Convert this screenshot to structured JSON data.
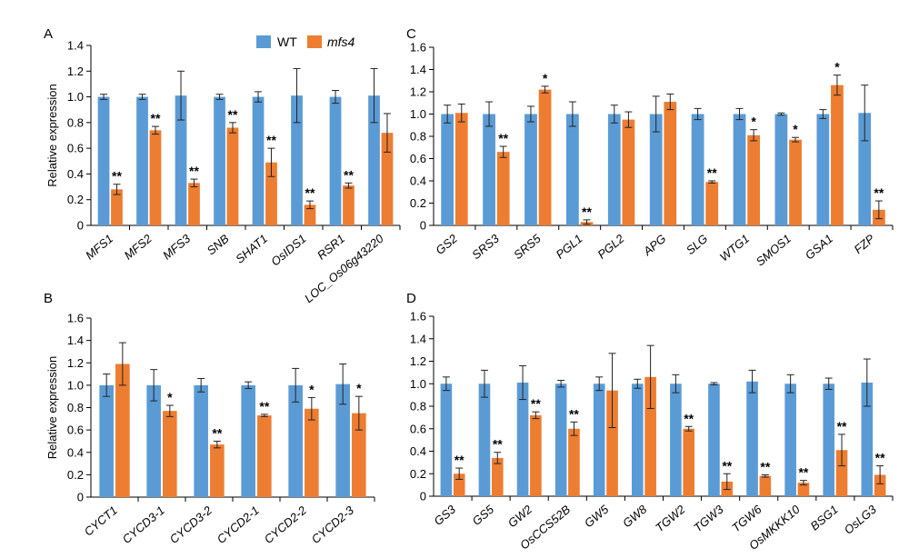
{
  "colors": {
    "wt": "#5b9bd5",
    "mutant": "#ed7d31",
    "axis": "#000000"
  },
  "legend": {
    "wt_label": "WT",
    "mutant_label": "mfs4"
  },
  "chart_data": [
    {
      "panel": "A",
      "type": "bar",
      "ylabel": "Relative expression",
      "ylim": [
        0,
        1.4
      ],
      "yticks": [
        "0",
        "0.2",
        "0.4",
        "0.6",
        "0.8",
        "1.0",
        "1.2",
        "1.4"
      ],
      "categories": [
        "MFS1",
        "MFS2",
        "MFS3",
        "SNB",
        "SHAT1",
        "OsIDS1",
        "RSR1",
        "LOC_Os06g43220"
      ],
      "series": [
        {
          "name": "WT",
          "values": [
            1.0,
            1.0,
            1.01,
            1.0,
            1.0,
            1.01,
            1.0,
            1.01
          ],
          "errors": [
            0.02,
            0.02,
            0.19,
            0.02,
            0.04,
            0.21,
            0.05,
            0.21
          ]
        },
        {
          "name": "mfs4",
          "values": [
            0.28,
            0.74,
            0.33,
            0.76,
            0.49,
            0.16,
            0.31,
            0.72
          ],
          "errors": [
            0.04,
            0.03,
            0.03,
            0.04,
            0.11,
            0.03,
            0.02,
            0.15
          ]
        }
      ],
      "annotations": [
        "**",
        "**",
        "**",
        "**",
        "**",
        "**",
        "**",
        ""
      ]
    },
    {
      "panel": "C",
      "type": "bar",
      "ylabel": "",
      "ylim": [
        0,
        1.6
      ],
      "yticks": [
        "0",
        "0.2",
        "0.4",
        "0.6",
        "0.8",
        "1.0",
        "1.2",
        "1.4",
        "1.6"
      ],
      "categories": [
        "GS2",
        "SRS3",
        "SRS5",
        "PGL1",
        "PGL2",
        "APG",
        "SLG",
        "WTG1",
        "SMOS1",
        "GSA1",
        "FZP"
      ],
      "series": [
        {
          "name": "WT",
          "values": [
            1.0,
            1.0,
            1.0,
            1.0,
            1.0,
            1.0,
            1.0,
            1.0,
            1.0,
            1.0,
            1.01
          ],
          "errors": [
            0.08,
            0.11,
            0.07,
            0.11,
            0.08,
            0.16,
            0.05,
            0.05,
            0.01,
            0.04,
            0.25
          ]
        },
        {
          "name": "mfs4",
          "values": [
            1.01,
            0.66,
            1.22,
            0.03,
            0.95,
            1.11,
            0.39,
            0.81,
            0.77,
            1.26,
            0.14
          ],
          "errors": [
            0.08,
            0.05,
            0.03,
            0.02,
            0.07,
            0.07,
            0.01,
            0.05,
            0.02,
            0.09,
            0.08
          ]
        }
      ],
      "annotations": [
        "",
        "**",
        "*",
        "**",
        "",
        "",
        "**",
        "*",
        "*",
        "*",
        "**"
      ]
    },
    {
      "panel": "B",
      "type": "bar",
      "ylabel": "Relative expression",
      "ylim": [
        0,
        1.6
      ],
      "yticks": [
        "0",
        "0.2",
        "0.4",
        "0.6",
        "0.8",
        "1.0",
        "1.2",
        "1.4",
        "1.6"
      ],
      "categories": [
        "CYCT1",
        "CYCD3-1",
        "CYCD3-2",
        "CYCD2-1",
        "CYCD2-2",
        "CYCD2-3"
      ],
      "series": [
        {
          "name": "WT",
          "values": [
            1.0,
            1.0,
            1.0,
            1.0,
            1.0,
            1.01
          ],
          "errors": [
            0.1,
            0.14,
            0.06,
            0.03,
            0.15,
            0.18
          ]
        },
        {
          "name": "mfs4",
          "values": [
            1.19,
            0.77,
            0.47,
            0.73,
            0.79,
            0.75
          ],
          "errors": [
            0.19,
            0.05,
            0.03,
            0.01,
            0.1,
            0.15
          ]
        }
      ],
      "annotations": [
        "",
        "*",
        "**",
        "**",
        "*",
        "*"
      ]
    },
    {
      "panel": "D",
      "type": "bar",
      "ylabel": "",
      "ylim": [
        0,
        1.6
      ],
      "yticks": [
        "0",
        "0.2",
        "0.4",
        "0.6",
        "0.8",
        "1.0",
        "1.2",
        "1.4",
        "1.6"
      ],
      "categories": [
        "GS3",
        "GS5",
        "GW2",
        "OsCCS52B",
        "GW5",
        "GW8",
        "TGW2",
        "TGW3",
        "TGW6",
        "OsMKKK10",
        "BSG1",
        "OsLG3"
      ],
      "series": [
        {
          "name": "WT",
          "values": [
            1.0,
            1.0,
            1.01,
            1.0,
            1.0,
            1.0,
            1.0,
            1.0,
            1.02,
            1.0,
            1.0,
            1.01
          ],
          "errors": [
            0.06,
            0.12,
            0.15,
            0.03,
            0.06,
            0.04,
            0.08,
            0.01,
            0.1,
            0.08,
            0.05,
            0.21
          ]
        },
        {
          "name": "mfs4",
          "values": [
            0.2,
            0.34,
            0.72,
            0.6,
            0.94,
            1.06,
            0.6,
            0.13,
            0.18,
            0.12,
            0.41,
            0.19
          ],
          "errors": [
            0.05,
            0.05,
            0.03,
            0.06,
            0.33,
            0.28,
            0.02,
            0.07,
            0.01,
            0.02,
            0.14,
            0.08
          ]
        }
      ],
      "annotations": [
        "**",
        "**",
        "**",
        "**",
        "",
        "",
        "**",
        "**",
        "**",
        "**",
        "**",
        "**"
      ]
    }
  ]
}
